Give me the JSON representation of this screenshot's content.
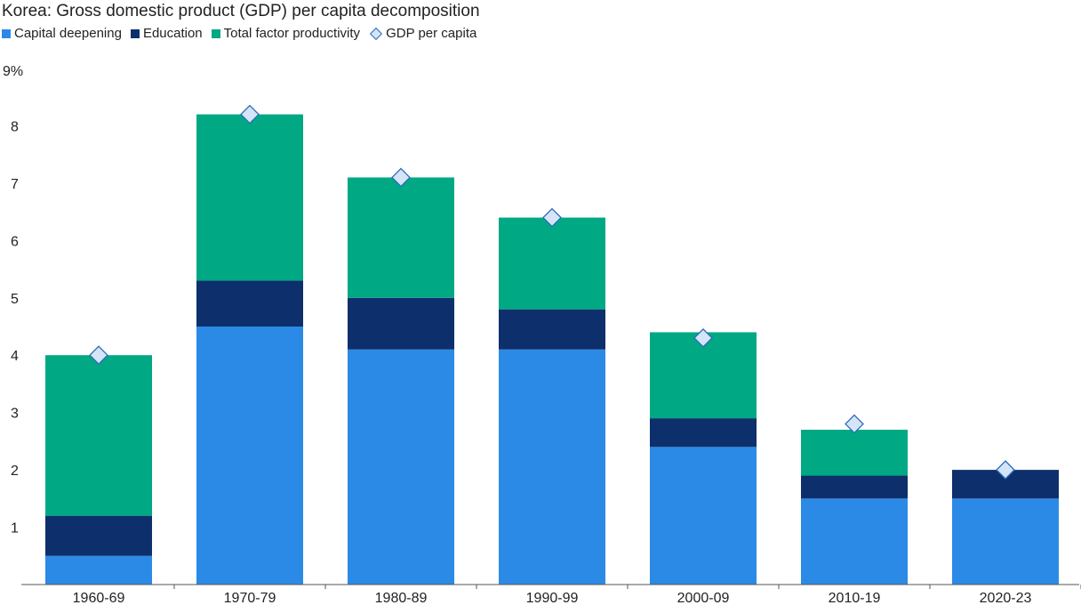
{
  "chart_data": {
    "type": "bar",
    "stacked": true,
    "title": "Korea: Gross domestic product (GDP) per capita decomposition",
    "categories": [
      "1960-69",
      "1970-79",
      "1980-89",
      "1990-99",
      "2000-09",
      "2010-19",
      "2020-23"
    ],
    "series": [
      {
        "name": "Capital deepening",
        "color": "#2b8ae6",
        "values": [
          0.5,
          4.5,
          4.1,
          4.1,
          2.4,
          1.5,
          1.5
        ]
      },
      {
        "name": "Education",
        "color": "#0d2f6b",
        "values": [
          0.7,
          0.8,
          0.9,
          0.7,
          0.5,
          0.4,
          0.5
        ]
      },
      {
        "name": "Total factor productivity",
        "color": "#00a884",
        "values": [
          2.8,
          2.9,
          2.1,
          1.6,
          1.5,
          0.8,
          0.0
        ]
      }
    ],
    "markers": {
      "name": "GDP per capita",
      "color": "#d5e4f6",
      "stroke": "#2b6cb8",
      "values": [
        4.0,
        8.2,
        7.1,
        6.4,
        4.3,
        2.8,
        2.0
      ]
    },
    "yaxis": {
      "ylim": [
        0,
        9
      ],
      "ticks": [
        1,
        2,
        3,
        4,
        5,
        6,
        7,
        8
      ],
      "top_label": "9%"
    },
    "grid": false,
    "legend_position": "top-left"
  }
}
